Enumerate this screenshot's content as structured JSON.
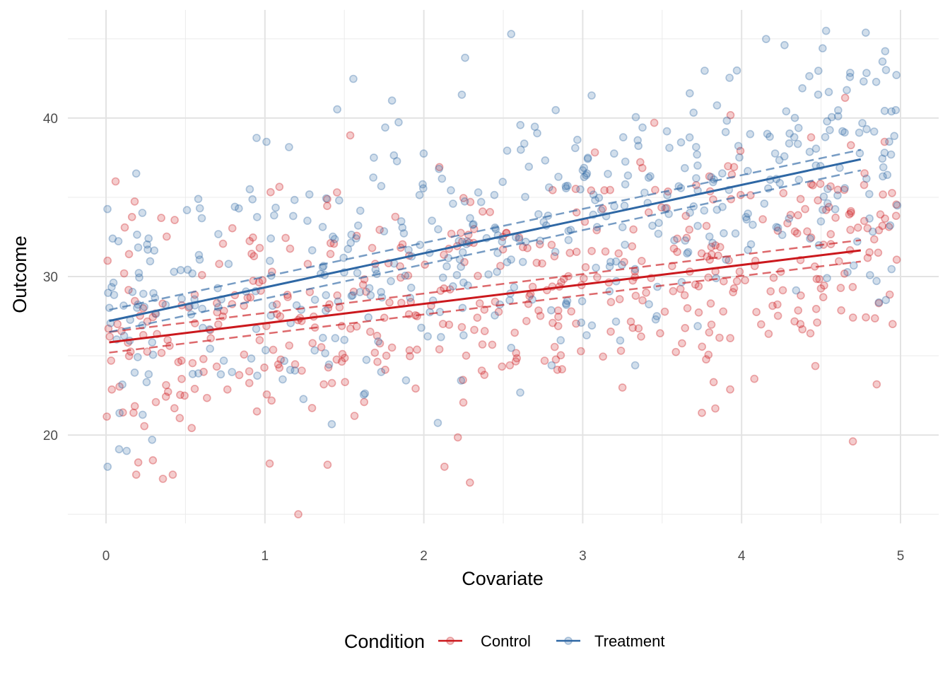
{
  "chart_data": {
    "type": "scatter",
    "xlabel": "Covariate",
    "ylabel": "Outcome",
    "xlim": [
      -0.24,
      5.22
    ],
    "ylim": [
      14.0,
      46.3
    ],
    "x_ticks": [
      "0",
      "1",
      "2",
      "3",
      "4",
      "5"
    ],
    "y_ticks": [
      "20",
      "30",
      "40"
    ],
    "grid": true,
    "legend": {
      "title": "Condition",
      "position": "bottom"
    },
    "point_opacity": 0.25,
    "series": [
      {
        "name": "Control",
        "color": "#CB181D",
        "fit": {
          "x": [
            0.02,
            4.75
          ],
          "y": [
            25.85,
            31.65
          ]
        },
        "ci_upper": {
          "x": [
            0.02,
            4.75
          ],
          "y": [
            26.5,
            32.3
          ]
        },
        "ci_lower": {
          "x": [
            0.02,
            4.75
          ],
          "y": [
            25.2,
            30.95
          ]
        },
        "points_sample": [
          [
            0.01,
            31.0
          ],
          [
            0.06,
            36.0
          ],
          [
            0.19,
            17.5
          ],
          [
            0.42,
            17.5
          ],
          [
            1.21,
            15.0
          ],
          [
            2.29,
            17.0
          ],
          [
            2.13,
            18.0
          ],
          [
            1.03,
            18.2
          ],
          [
            3.75,
            21.4
          ],
          [
            3.25,
            23.0
          ],
          [
            4.37,
            27.0
          ],
          [
            4.95,
            27.0
          ],
          [
            4.7,
            19.6
          ],
          [
            4.85,
            23.2
          ],
          [
            4.9,
            38.5
          ],
          [
            3.45,
            39.7
          ]
        ]
      },
      {
        "name": "Treatment",
        "color": "#2E67A4",
        "fit": {
          "x": [
            0.02,
            4.75
          ],
          "y": [
            27.2,
            37.4
          ]
        },
        "ci_upper": {
          "x": [
            0.02,
            4.75
          ],
          "y": [
            27.9,
            38.0
          ]
        },
        "ci_lower": {
          "x": [
            0.02,
            4.75
          ],
          "y": [
            26.5,
            36.7
          ]
        },
        "points_sample": [
          [
            0.01,
            18.0
          ],
          [
            0.13,
            19.0
          ],
          [
            0.19,
            36.5
          ],
          [
            1.01,
            38.5
          ],
          [
            2.55,
            45.3
          ],
          [
            2.26,
            43.8
          ],
          [
            4.27,
            44.6
          ],
          [
            4.51,
            44.4
          ],
          [
            3.97,
            43.0
          ],
          [
            1.8,
            41.1
          ],
          [
            2.83,
            40.5
          ],
          [
            4.97,
            40.5
          ],
          [
            3.33,
            24.4
          ],
          [
            2.55,
            25.5
          ],
          [
            1.5,
            26.0
          ],
          [
            0.29,
            19.7
          ]
        ]
      }
    ]
  }
}
